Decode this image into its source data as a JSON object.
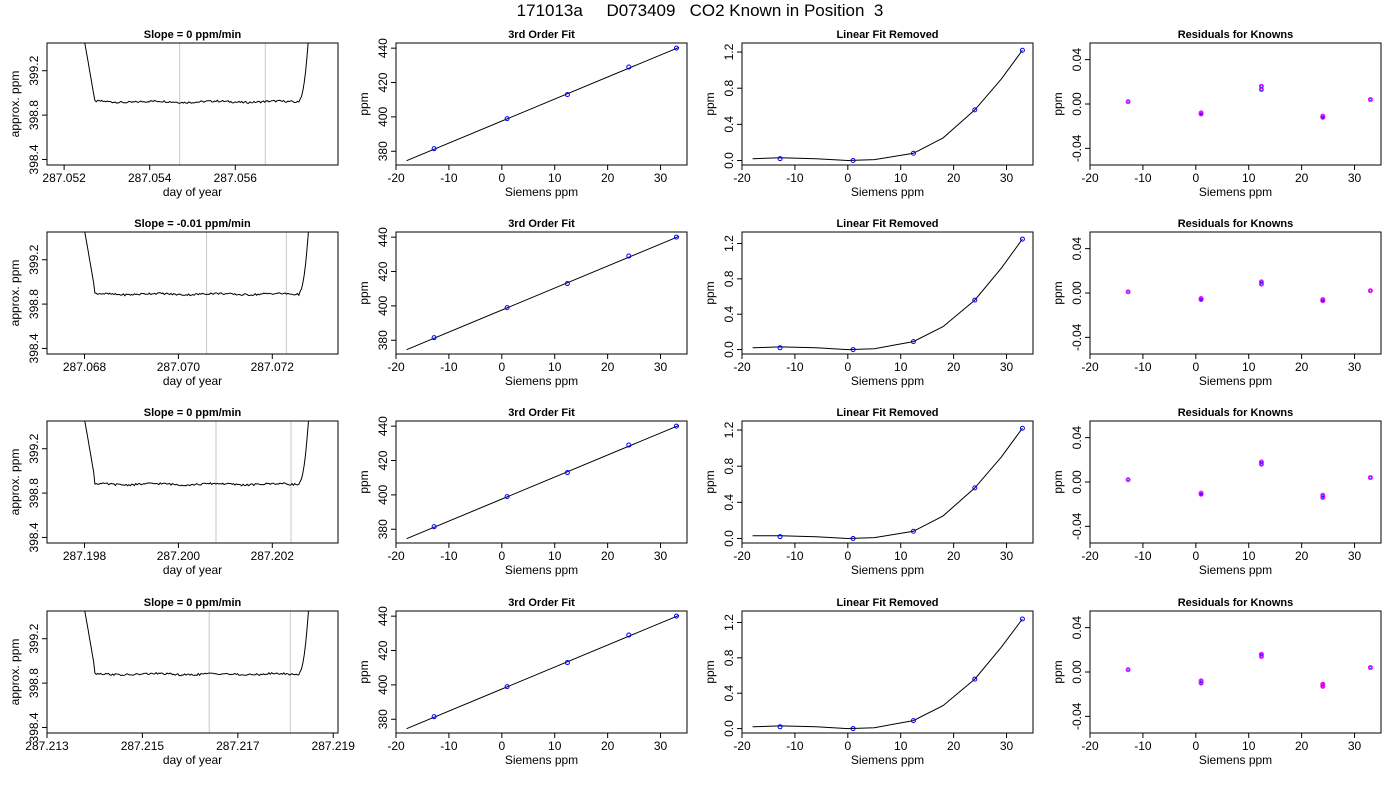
{
  "title": "171013a     D073409   CO2 Known in Position  3",
  "colors": {
    "background": "#ffffff",
    "line": "#000000",
    "points_a": "#0000ff",
    "points_b": "#ff00ff",
    "gridline": "#c8c8c8",
    "accent": "#ff0000"
  },
  "chart_data": [
    {
      "row": 1,
      "col": 1,
      "type": "line",
      "title": "Slope =  0  ppm/min",
      "xlabel": "day of year",
      "ylabel": "approx. ppm",
      "xlim": [
        287.0516,
        287.0584
      ],
      "ylim": [
        398.35,
        399.45
      ],
      "xticks": [
        287.052,
        287.054,
        287.056
      ],
      "xtick_labels": [
        "287.052",
        "287.054",
        "287.056"
      ],
      "yticks": [
        398.4,
        398.8,
        399.2
      ],
      "ytick_labels": [
        "398.4",
        "398.8",
        "399.2"
      ],
      "vlines": [
        287.0547,
        287.0567
      ],
      "plateau": 398.92
    },
    {
      "row": 1,
      "col": 2,
      "type": "scatter",
      "title": "3rd Order Fit",
      "xlabel": "Siemens ppm",
      "ylabel": "ppm",
      "xlim": [
        -20,
        35
      ],
      "ylim": [
        372,
        443
      ],
      "xticks": [
        -20,
        -10,
        0,
        10,
        20,
        30
      ],
      "xtick_labels": [
        "-20",
        "-10",
        "0",
        "10",
        "20",
        "30"
      ],
      "yticks": [
        380,
        400,
        420,
        440
      ],
      "ytick_labels": [
        "380",
        "400",
        "420",
        "440"
      ],
      "x": [
        -12.8,
        1.0,
        12.4,
        24.0,
        33.0
      ],
      "y": [
        381.5,
        399.0,
        413.0,
        429.0,
        440.0
      ],
      "fit_line": [
        [
          -18,
          374.5
        ],
        [
          33.5,
          440.5
        ]
      ]
    },
    {
      "row": 1,
      "col": 3,
      "type": "scatter",
      "title": "Linear Fit Removed",
      "xlabel": "Siemens ppm",
      "ylabel": "ppm",
      "xlim": [
        -20,
        35
      ],
      "ylim": [
        -0.05,
        1.3
      ],
      "xticks": [
        -20,
        -10,
        0,
        10,
        20,
        30
      ],
      "xtick_labels": [
        "-20",
        "-10",
        "0",
        "10",
        "20",
        "30"
      ],
      "yticks": [
        0.0,
        0.4,
        0.8,
        1.2
      ],
      "ytick_labels": [
        "0.0",
        "0.4",
        "0.8",
        "1.2"
      ],
      "x": [
        -12.8,
        1.0,
        12.4,
        24.0,
        33.0
      ],
      "y": [
        0.02,
        0.0,
        0.08,
        0.56,
        1.22
      ],
      "curve": [
        [
          -18,
          0.02
        ],
        [
          -12.8,
          0.03
        ],
        [
          -6,
          0.02
        ],
        [
          0,
          0.0
        ],
        [
          5,
          0.01
        ],
        [
          12.4,
          0.08
        ],
        [
          18,
          0.25
        ],
        [
          24,
          0.56
        ],
        [
          29,
          0.9
        ],
        [
          33,
          1.22
        ]
      ]
    },
    {
      "row": 1,
      "col": 4,
      "type": "scatter",
      "title": "Residuals for Knowns",
      "xlabel": "Siemens ppm",
      "ylabel": "ppm",
      "xlim": [
        -20,
        35
      ],
      "ylim": [
        -0.055,
        0.055
      ],
      "xticks": [
        -20,
        -10,
        0,
        10,
        20,
        30
      ],
      "xtick_labels": [
        "-20",
        "-10",
        "0",
        "10",
        "20",
        "30"
      ],
      "yticks": [
        -0.04,
        0.0,
        0.04
      ],
      "ytick_labels": [
        "-0.04",
        "0.00",
        "0.04"
      ],
      "x": [
        -12.8,
        1.0,
        1.0,
        12.4,
        12.4,
        24.0,
        24.0,
        33.0
      ],
      "y": [
        0.002,
        -0.008,
        -0.009,
        0.013,
        0.016,
        -0.011,
        -0.012,
        0.004
      ]
    },
    {
      "row": 2,
      "col": 1,
      "type": "line",
      "title": "Slope =  -0.01  ppm/min",
      "xlabel": "day of year",
      "ylabel": "approx. ppm",
      "xlim": [
        287.0672,
        287.0734
      ],
      "ylim": [
        398.35,
        399.45
      ],
      "xticks": [
        287.068,
        287.07,
        287.072
      ],
      "xtick_labels": [
        "287.068",
        "287.070",
        "287.072"
      ],
      "yticks": [
        398.4,
        398.8,
        399.2
      ],
      "ytick_labels": [
        "398.4",
        "398.8",
        "399.2"
      ],
      "vlines": [
        287.0706,
        287.0723
      ],
      "plateau": 398.89
    },
    {
      "row": 2,
      "col": 2,
      "type": "scatter",
      "title": "3rd Order Fit",
      "xlabel": "Siemens ppm",
      "ylabel": "ppm",
      "xlim": [
        -20,
        35
      ],
      "ylim": [
        372,
        443
      ],
      "xticks": [
        -20,
        -10,
        0,
        10,
        20,
        30
      ],
      "xtick_labels": [
        "-20",
        "-10",
        "0",
        "10",
        "20",
        "30"
      ],
      "yticks": [
        380,
        400,
        420,
        440
      ],
      "ytick_labels": [
        "380",
        "400",
        "420",
        "440"
      ],
      "x": [
        -12.8,
        1.0,
        12.4,
        24.0,
        33.0
      ],
      "y": [
        381.5,
        399.0,
        413.0,
        429.0,
        440.0
      ],
      "fit_line": [
        [
          -18,
          374.5
        ],
        [
          33.5,
          440.5
        ]
      ]
    },
    {
      "row": 2,
      "col": 3,
      "type": "scatter",
      "title": "Linear Fit Removed",
      "xlabel": "Siemens ppm",
      "ylabel": "ppm",
      "xlim": [
        -20,
        35
      ],
      "ylim": [
        -0.05,
        1.33
      ],
      "xticks": [
        -20,
        -10,
        0,
        10,
        20,
        30
      ],
      "xtick_labels": [
        "-20",
        "-10",
        "0",
        "10",
        "20",
        "30"
      ],
      "yticks": [
        0.0,
        0.4,
        0.8,
        1.2
      ],
      "ytick_labels": [
        "0.0",
        "0.4",
        "0.8",
        "1.2"
      ],
      "x": [
        -12.8,
        1.0,
        12.4,
        24.0,
        33.0
      ],
      "y": [
        0.02,
        0.0,
        0.09,
        0.56,
        1.25
      ],
      "curve": [
        [
          -18,
          0.02
        ],
        [
          -12.8,
          0.03
        ],
        [
          -6,
          0.02
        ],
        [
          0,
          0.0
        ],
        [
          5,
          0.01
        ],
        [
          12.4,
          0.09
        ],
        [
          18,
          0.26
        ],
        [
          24,
          0.56
        ],
        [
          29,
          0.92
        ],
        [
          33,
          1.25
        ]
      ]
    },
    {
      "row": 2,
      "col": 4,
      "type": "scatter",
      "title": "Residuals for Knowns",
      "xlabel": "Siemens ppm",
      "ylabel": "ppm",
      "xlim": [
        -20,
        35
      ],
      "ylim": [
        -0.055,
        0.055
      ],
      "xticks": [
        -20,
        -10,
        0,
        10,
        20,
        30
      ],
      "xtick_labels": [
        "-20",
        "-10",
        "0",
        "10",
        "20",
        "30"
      ],
      "yticks": [
        -0.04,
        0.0,
        0.04
      ],
      "ytick_labels": [
        "-0.04",
        "0.00",
        "0.04"
      ],
      "x": [
        -12.8,
        1.0,
        1.0,
        12.4,
        12.4,
        24.0,
        24.0,
        33.0
      ],
      "y": [
        0.001,
        -0.005,
        -0.006,
        0.008,
        0.01,
        -0.006,
        -0.007,
        0.002
      ]
    },
    {
      "row": 3,
      "col": 1,
      "type": "line",
      "title": "Slope =  0  ppm/min",
      "xlabel": "day of year",
      "ylabel": "approx. ppm",
      "xlim": [
        287.1972,
        287.2034
      ],
      "ylim": [
        398.35,
        399.45
      ],
      "xticks": [
        287.198,
        287.2,
        287.202
      ],
      "xtick_labels": [
        "287.198",
        "287.200",
        "287.202"
      ],
      "yticks": [
        398.4,
        398.8,
        399.2
      ],
      "ytick_labels": [
        "398.4",
        "398.8",
        "399.2"
      ],
      "vlines": [
        287.2008,
        287.2024
      ],
      "plateau": 398.88
    },
    {
      "row": 3,
      "col": 2,
      "type": "scatter",
      "title": "3rd Order Fit",
      "xlabel": "Siemens ppm",
      "ylabel": "ppm",
      "xlim": [
        -20,
        35
      ],
      "ylim": [
        372,
        443
      ],
      "xticks": [
        -20,
        -10,
        0,
        10,
        20,
        30
      ],
      "xtick_labels": [
        "-20",
        "-10",
        "0",
        "10",
        "20",
        "30"
      ],
      "yticks": [
        380,
        400,
        420,
        440
      ],
      "ytick_labels": [
        "380",
        "400",
        "420",
        "440"
      ],
      "x": [
        -12.8,
        1.0,
        12.4,
        24.0,
        33.0
      ],
      "y": [
        381.5,
        399.0,
        413.0,
        429.0,
        440.0
      ],
      "fit_line": [
        [
          -18,
          374.5
        ],
        [
          33.5,
          440.5
        ]
      ]
    },
    {
      "row": 3,
      "col": 3,
      "type": "scatter",
      "title": "Linear Fit Removed",
      "xlabel": "Siemens ppm",
      "ylabel": "ppm",
      "xlim": [
        -20,
        35
      ],
      "ylim": [
        -0.05,
        1.3
      ],
      "xticks": [
        -20,
        -10,
        0,
        10,
        20,
        30
      ],
      "xtick_labels": [
        "-20",
        "-10",
        "0",
        "10",
        "20",
        "30"
      ],
      "yticks": [
        0.0,
        0.4,
        0.8,
        1.2
      ],
      "ytick_labels": [
        "0.0",
        "0.4",
        "0.8",
        "1.2"
      ],
      "x": [
        -12.8,
        1.0,
        12.4,
        24.0,
        33.0
      ],
      "y": [
        0.02,
        0.0,
        0.08,
        0.56,
        1.22
      ],
      "curve": [
        [
          -18,
          0.03
        ],
        [
          -12.8,
          0.03
        ],
        [
          -6,
          0.02
        ],
        [
          0,
          0.0
        ],
        [
          5,
          0.01
        ],
        [
          12.4,
          0.08
        ],
        [
          18,
          0.25
        ],
        [
          24,
          0.56
        ],
        [
          29,
          0.9
        ],
        [
          33,
          1.22
        ]
      ]
    },
    {
      "row": 3,
      "col": 4,
      "type": "scatter",
      "title": "Residuals for Knowns",
      "xlabel": "Siemens ppm",
      "ylabel": "ppm",
      "xlim": [
        -20,
        35
      ],
      "ylim": [
        -0.055,
        0.055
      ],
      "xticks": [
        -20,
        -10,
        0,
        10,
        20,
        30
      ],
      "xtick_labels": [
        "-20",
        "-10",
        "0",
        "10",
        "20",
        "30"
      ],
      "yticks": [
        -0.04,
        0.0,
        0.04
      ],
      "ytick_labels": [
        "-0.04",
        "0.00",
        "0.04"
      ],
      "x": [
        -12.8,
        1.0,
        1.0,
        12.4,
        12.4,
        24.0,
        24.0,
        33.0
      ],
      "y": [
        0.002,
        -0.01,
        -0.011,
        0.016,
        0.018,
        -0.012,
        -0.014,
        0.004
      ]
    },
    {
      "row": 4,
      "col": 1,
      "type": "line",
      "title": "Slope =  0  ppm/min",
      "xlabel": "day of year",
      "ylabel": "approx. ppm",
      "xlim": [
        287.213,
        287.2191
      ],
      "ylim": [
        398.35,
        399.45
      ],
      "xticks": [
        287.213,
        287.215,
        287.217,
        287.219
      ],
      "xtick_labels": [
        "287.213",
        "287.215",
        "287.217",
        "287.219"
      ],
      "yticks": [
        398.4,
        398.8,
        399.2
      ],
      "ytick_labels": [
        "398.4",
        "398.8",
        "399.2"
      ],
      "vlines": [
        287.2164,
        287.2181
      ],
      "plateau": 398.88
    },
    {
      "row": 4,
      "col": 2,
      "type": "scatter",
      "title": "3rd Order Fit",
      "xlabel": "Siemens ppm",
      "ylabel": "ppm",
      "xlim": [
        -20,
        35
      ],
      "ylim": [
        372,
        443
      ],
      "xticks": [
        -20,
        -10,
        0,
        10,
        20,
        30
      ],
      "xtick_labels": [
        "-20",
        "-10",
        "0",
        "10",
        "20",
        "30"
      ],
      "yticks": [
        380,
        400,
        420,
        440
      ],
      "ytick_labels": [
        "380",
        "400",
        "420",
        "440"
      ],
      "x": [
        -12.8,
        1.0,
        12.4,
        24.0,
        33.0
      ],
      "y": [
        381.5,
        399.0,
        413.0,
        429.0,
        440.0
      ],
      "fit_line": [
        [
          -18,
          374.5
        ],
        [
          33.5,
          440.5
        ]
      ]
    },
    {
      "row": 4,
      "col": 3,
      "type": "scatter",
      "title": "Linear Fit Removed",
      "xlabel": "Siemens ppm",
      "ylabel": "ppm",
      "xlim": [
        -20,
        35
      ],
      "ylim": [
        -0.05,
        1.33
      ],
      "xticks": [
        -20,
        -10,
        0,
        10,
        20,
        30
      ],
      "xtick_labels": [
        "-20",
        "-10",
        "0",
        "10",
        "20",
        "30"
      ],
      "yticks": [
        0.0,
        0.4,
        0.8,
        1.2
      ],
      "ytick_labels": [
        "0.0",
        "0.4",
        "0.8",
        "1.2"
      ],
      "x": [
        -12.8,
        1.0,
        12.4,
        24.0,
        33.0
      ],
      "y": [
        0.02,
        0.0,
        0.09,
        0.56,
        1.24
      ],
      "curve": [
        [
          -18,
          0.02
        ],
        [
          -12.8,
          0.03
        ],
        [
          -6,
          0.02
        ],
        [
          0,
          0.0
        ],
        [
          5,
          0.01
        ],
        [
          12.4,
          0.09
        ],
        [
          18,
          0.26
        ],
        [
          24,
          0.56
        ],
        [
          29,
          0.92
        ],
        [
          33,
          1.24
        ]
      ]
    },
    {
      "row": 4,
      "col": 4,
      "type": "scatter",
      "title": "Residuals for Knowns",
      "xlabel": "Siemens ppm",
      "ylabel": "ppm",
      "xlim": [
        -20,
        35
      ],
      "ylim": [
        -0.055,
        0.055
      ],
      "xticks": [
        -20,
        -10,
        0,
        10,
        20,
        30
      ],
      "xtick_labels": [
        "-20",
        "-10",
        "0",
        "10",
        "20",
        "30"
      ],
      "yticks": [
        -0.04,
        0.0,
        0.04
      ],
      "ytick_labels": [
        "-0.04",
        "0.00",
        "0.04"
      ],
      "x": [
        -12.8,
        1.0,
        1.0,
        12.4,
        12.4,
        24.0,
        24.0,
        33.0
      ],
      "y": [
        0.002,
        -0.008,
        -0.01,
        0.014,
        0.016,
        -0.011,
        -0.013,
        0.004
      ]
    }
  ]
}
